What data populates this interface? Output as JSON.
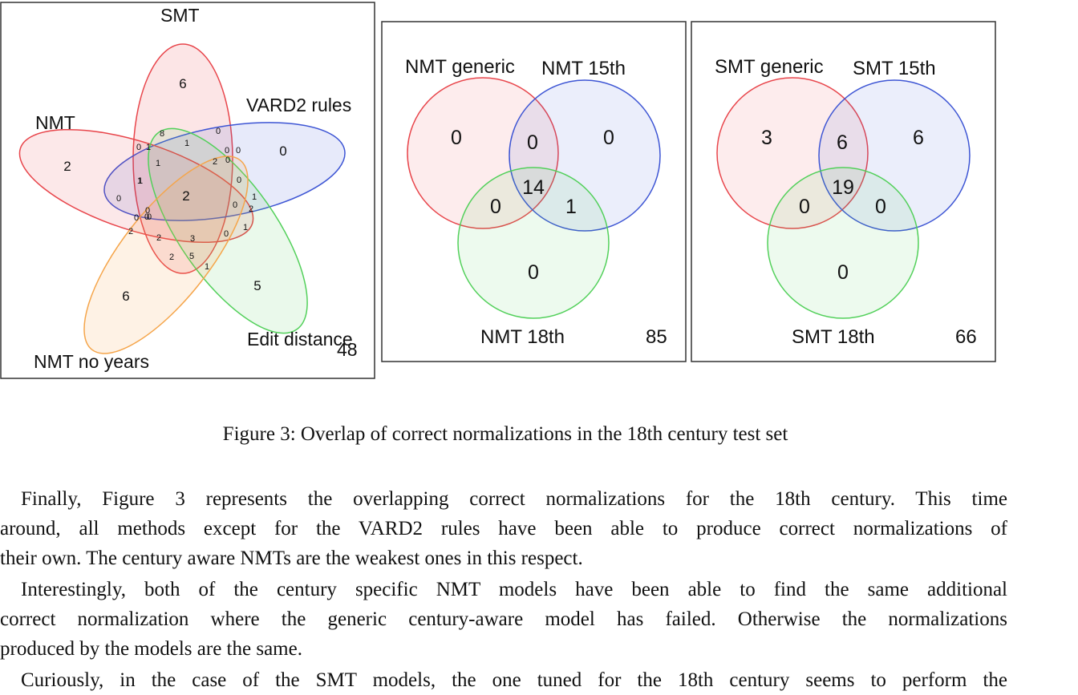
{
  "figure": {
    "caption": "Figure 3: Overlap of correct normalizations in the 18th century test set",
    "panels": [
      {
        "labels": {
          "smt": "SMT",
          "nmt": "NMT",
          "vard": "VARD2 rules",
          "edit": "Edit distance",
          "noyears": "NMT no years"
        },
        "outside_count": "48",
        "region_counts": [
          "6",
          "2",
          "0",
          "5",
          "6",
          "8",
          "0",
          "0",
          "1",
          "0",
          "1",
          "2",
          "0",
          "1",
          "0",
          "2",
          "0",
          "0",
          "1",
          "0",
          "2",
          "0",
          "1",
          "0",
          "0",
          "2",
          "0",
          "1",
          "1",
          "0",
          "2",
          "3",
          "2",
          "5",
          "1"
        ]
      },
      {
        "labels": {
          "a": "NMT generic",
          "b": "NMT 15th",
          "c": "NMT 18th"
        },
        "counts": {
          "a_only": "0",
          "ab": "0",
          "b_only": "0",
          "abc": "14",
          "ac": "0",
          "bc": "1",
          "c_only": "0"
        },
        "outside_count": "85"
      },
      {
        "labels": {
          "a": "SMT generic",
          "b": "SMT 15th",
          "c": "SMT 18th"
        },
        "counts": {
          "a_only": "3",
          "ab": "6",
          "b_only": "6",
          "abc": "19",
          "ac": "0",
          "bc": "0",
          "c_only": "0"
        },
        "outside_count": "66"
      }
    ],
    "colors": {
      "red": "#e8454b",
      "blue": "#3d55d4",
      "green": "#52d05a",
      "orange": "#f5a54a"
    }
  },
  "body": {
    "paragraphs": [
      {
        "lines": [
          "Finally, Figure 3 represents the overlapping correct normalizations for the 18th century. This time",
          "around, all methods except for the VARD2 rules have been able to produce correct normalizations of",
          "their own. The century aware NMTs are the weakest ones in this respect."
        ]
      },
      {
        "lines": [
          "Interestingly, both of the century specific NMT models have been able to find the same additional",
          "correct normalization where the generic century-aware model has failed. Otherwise the normalizations",
          "produced by the models are the same."
        ]
      },
      {
        "lines": [
          "Curiously, in the case of the SMT models, the one tuned for the 18th century seems to perform the"
        ]
      }
    ]
  }
}
